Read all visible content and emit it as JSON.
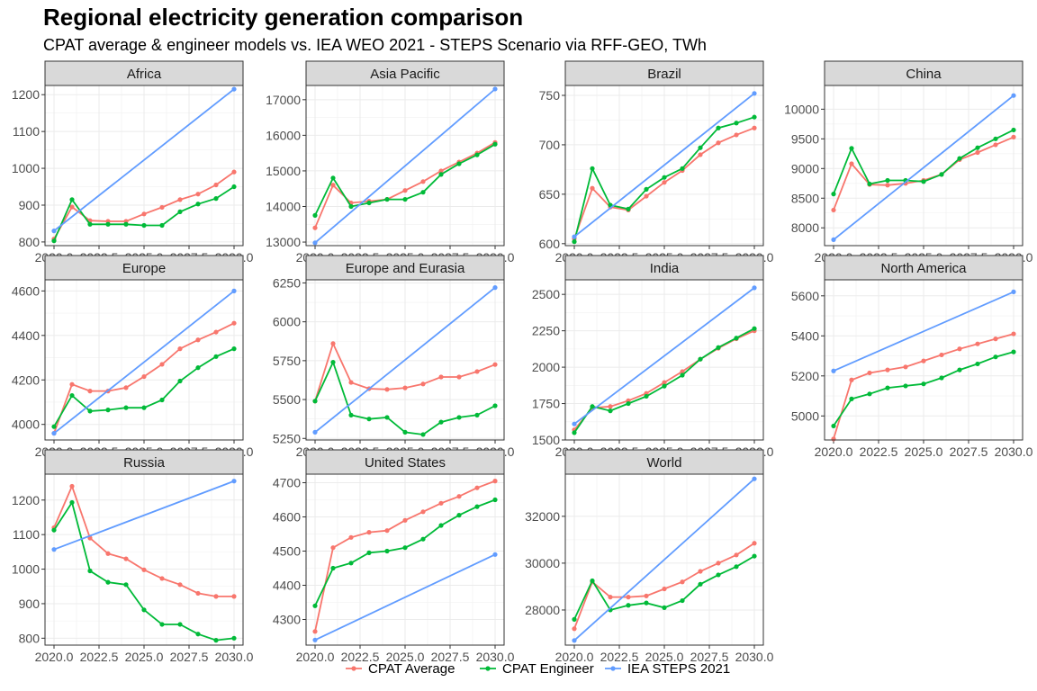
{
  "title": "Regional electricity generation comparison",
  "subtitle": "CPAT average & engineer models vs. IEA WEO 2021 - STEPS Scenario via RFF-GEO, TWh",
  "chart_data": {
    "type": "line",
    "facet_layout": "4 columns x 3 rows, free y scales",
    "grid": true,
    "legend_position": "bottom",
    "x": [
      2020,
      2021,
      2022,
      2023,
      2024,
      2025,
      2026,
      2027,
      2028,
      2029,
      2030
    ],
    "x_tick_labels": [
      "2020.0",
      "2022.5",
      "2025.0",
      "2027.5",
      "2030.0"
    ],
    "legend": [
      {
        "name": "CPAT Average",
        "color": "#F8766D"
      },
      {
        "name": "CPAT Engineer",
        "color": "#00BA38"
      },
      {
        "name": "IEA STEPS 2021",
        "color": "#619CFF"
      }
    ],
    "panels": [
      {
        "name": "Africa",
        "ylim": [
          790,
          1225
        ],
        "yticks": [
          800,
          900,
          1000,
          1100,
          1200
        ],
        "series": {
          "CPAT Average": [
            808,
            895,
            858,
            856,
            856,
            876,
            894,
            915,
            930,
            955,
            990
          ],
          "CPAT Engineer": [
            803,
            915,
            848,
            848,
            848,
            845,
            845,
            882,
            903,
            918,
            950
          ],
          "IEA STEPS 2021": {
            "x": [
              2020,
              2030
            ],
            "y": [
              830,
              1215
            ]
          }
        }
      },
      {
        "name": "Asia Pacific",
        "ylim": [
          12900,
          17400
        ],
        "yticks": [
          13000,
          14000,
          15000,
          16000,
          17000
        ],
        "series": {
          "CPAT Average": [
            13400,
            14600,
            14100,
            14150,
            14200,
            14450,
            14700,
            15000,
            15250,
            15500,
            15800
          ],
          "CPAT Engineer": [
            13750,
            14800,
            14000,
            14100,
            14200,
            14200,
            14400,
            14900,
            15200,
            15450,
            15750
          ],
          "IEA STEPS 2021": {
            "x": [
              2020,
              2030
            ],
            "y": [
              12980,
              17300
            ]
          }
        }
      },
      {
        "name": "Brazil",
        "ylim": [
          598,
          760
        ],
        "yticks": [
          600,
          650,
          700,
          750
        ],
        "series": {
          "CPAT Average": [
            605,
            656,
            637,
            634,
            648,
            662,
            674,
            690,
            702,
            710,
            717
          ],
          "CPAT Engineer": [
            602,
            676,
            639,
            635,
            655,
            667,
            676,
            697,
            717,
            722,
            728
          ],
          "IEA STEPS 2021": {
            "x": [
              2020,
              2030
            ],
            "y": [
              607,
              752
            ]
          }
        }
      },
      {
        "name": "China",
        "ylim": [
          7700,
          10400
        ],
        "yticks": [
          8000,
          8500,
          9000,
          9500,
          10000
        ],
        "series": {
          "CPAT Average": [
            8300,
            9080,
            8730,
            8720,
            8750,
            8800,
            8900,
            9150,
            9270,
            9400,
            9530
          ],
          "CPAT Engineer": [
            8570,
            9340,
            8740,
            8800,
            8800,
            8780,
            8900,
            9170,
            9350,
            9500,
            9650
          ],
          "IEA STEPS 2021": {
            "x": [
              2020,
              2030
            ],
            "y": [
              7800,
              10230
            ]
          }
        }
      },
      {
        "name": "Europe",
        "ylim": [
          3930,
          4650
        ],
        "yticks": [
          4000,
          4200,
          4400,
          4600
        ],
        "series": {
          "CPAT Average": [
            3960,
            4180,
            4150,
            4150,
            4165,
            4215,
            4270,
            4340,
            4380,
            4415,
            4455
          ],
          "CPAT Engineer": [
            3990,
            4130,
            4060,
            4065,
            4075,
            4075,
            4110,
            4195,
            4255,
            4305,
            4340
          ],
          "IEA STEPS 2021": {
            "x": [
              2020,
              2030
            ],
            "y": [
              3960,
              4600
            ]
          }
        }
      },
      {
        "name": "Europe and Eurasia",
        "ylim": [
          5240,
          6270
        ],
        "yticks": [
          5250,
          5500,
          5750,
          6000,
          6250
        ],
        "series": {
          "CPAT Average": [
            5490,
            5860,
            5610,
            5570,
            5565,
            5575,
            5600,
            5645,
            5645,
            5680,
            5725
          ],
          "CPAT Engineer": [
            5490,
            5740,
            5400,
            5375,
            5385,
            5290,
            5275,
            5355,
            5385,
            5400,
            5460
          ],
          "IEA STEPS 2021": {
            "x": [
              2020,
              2030
            ],
            "y": [
              5290,
              6220
            ]
          }
        }
      },
      {
        "name": "India",
        "ylim": [
          1500,
          2600
        ],
        "yticks": [
          1500,
          1750,
          2000,
          2250,
          2500
        ],
        "series": {
          "CPAT Average": [
            1570,
            1720,
            1730,
            1770,
            1820,
            1895,
            1970,
            2055,
            2130,
            2195,
            2250
          ],
          "CPAT Engineer": [
            1550,
            1730,
            1700,
            1750,
            1800,
            1870,
            1945,
            2055,
            2135,
            2200,
            2265
          ],
          "IEA STEPS 2021": {
            "x": [
              2020,
              2030
            ],
            "y": [
              1610,
              2545
            ]
          }
        }
      },
      {
        "name": "North America",
        "ylim": [
          4880,
          5680
        ],
        "yticks": [
          5000,
          5200,
          5400,
          5600
        ],
        "series": {
          "CPAT Average": [
            4885,
            5180,
            5215,
            5230,
            5245,
            5275,
            5305,
            5335,
            5360,
            5385,
            5410
          ],
          "CPAT Engineer": [
            4950,
            5085,
            5110,
            5140,
            5150,
            5160,
            5190,
            5230,
            5260,
            5295,
            5320
          ],
          "IEA STEPS 2021": {
            "x": [
              2020,
              2030
            ],
            "y": [
              5225,
              5620
            ]
          }
        }
      },
      {
        "name": "Russia",
        "ylim": [
          780,
          1275
        ],
        "yticks": [
          800,
          900,
          1000,
          1100,
          1200
        ],
        "series": {
          "CPAT Average": [
            1120,
            1240,
            1090,
            1045,
            1030,
            998,
            973,
            955,
            930,
            921,
            921
          ],
          "CPAT Engineer": [
            1113,
            1193,
            995,
            962,
            955,
            882,
            840,
            840,
            812,
            794,
            800
          ],
          "IEA STEPS 2021": {
            "x": [
              2020,
              2030
            ],
            "y": [
              1057,
              1255
            ]
          }
        }
      },
      {
        "name": "United States",
        "ylim": [
          4225,
          4725
        ],
        "yticks": [
          4300,
          4400,
          4500,
          4600,
          4700
        ],
        "series": {
          "CPAT Average": [
            4265,
            4510,
            4540,
            4555,
            4560,
            4590,
            4615,
            4640,
            4660,
            4685,
            4705
          ],
          "CPAT Engineer": [
            4340,
            4450,
            4465,
            4495,
            4500,
            4510,
            4535,
            4575,
            4605,
            4630,
            4650
          ],
          "IEA STEPS 2021": {
            "x": [
              2020,
              2030
            ],
            "y": [
              4240,
              4490
            ]
          }
        }
      },
      {
        "name": "World",
        "ylim": [
          26500,
          33800
        ],
        "yticks": [
          28000,
          30000,
          32000
        ],
        "series": {
          "CPAT Average": [
            27200,
            29200,
            28550,
            28550,
            28600,
            28900,
            29200,
            29650,
            30000,
            30350,
            30850
          ],
          "CPAT Engineer": [
            27600,
            29250,
            28000,
            28200,
            28300,
            28100,
            28400,
            29100,
            29500,
            29850,
            30300
          ],
          "IEA STEPS 2021": {
            "x": [
              2020,
              2030
            ],
            "y": [
              26700,
              33600
            ]
          }
        }
      }
    ]
  }
}
